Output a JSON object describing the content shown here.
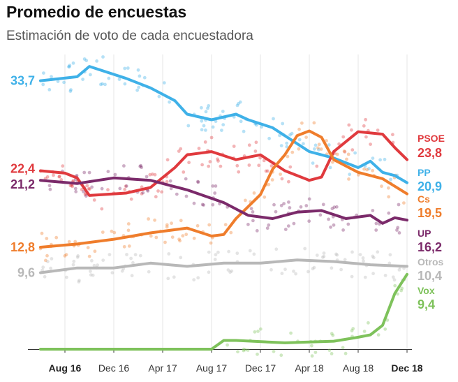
{
  "header": {
    "title": "Promedio de encuestas",
    "subtitle": "Estimación de voto de cada encuestadora"
  },
  "chart_data": {
    "type": "line",
    "title": "Promedio de encuestas",
    "subtitle": "Estimación de voto de cada encuestadora",
    "x_ticks": [
      "Aug 16",
      "Dec 16",
      "Apr 17",
      "Aug 17",
      "Dec 17",
      "Apr 18",
      "Aug 18",
      "Dec 18"
    ],
    "x_range": [
      "2016-06",
      "2018-12"
    ],
    "y_range": [
      0,
      37
    ],
    "grid": "vertical",
    "series": [
      {
        "name": "PP",
        "color": "#3fb1e8",
        "start_label": "33,7",
        "end_label": "20,9",
        "x": [
          "2016-06",
          "2016-09",
          "2016-10",
          "2017-01",
          "2017-03",
          "2017-05",
          "2017-06",
          "2017-08",
          "2017-10",
          "2017-11",
          "2018-01",
          "2018-03",
          "2018-04",
          "2018-06",
          "2018-08",
          "2018-09",
          "2018-10",
          "2018-11",
          "2018-12"
        ],
        "y": [
          33.7,
          34.2,
          35.5,
          34.0,
          32.8,
          31.2,
          29.5,
          28.8,
          29.5,
          28.8,
          27.8,
          25.8,
          24.8,
          24.0,
          22.8,
          23.6,
          22.2,
          21.8,
          20.9
        ]
      },
      {
        "name": "PSOE",
        "color": "#e03a3e",
        "start_label": "22,4",
        "end_label": "23,8",
        "x": [
          "2016-06",
          "2016-08",
          "2016-09",
          "2016-10",
          "2017-01",
          "2017-03",
          "2017-05",
          "2017-06",
          "2017-08",
          "2017-10",
          "2017-12",
          "2018-02",
          "2018-04",
          "2018-05",
          "2018-06",
          "2018-08",
          "2018-10",
          "2018-11",
          "2018-12"
        ],
        "y": [
          22.4,
          22.1,
          21.5,
          19.3,
          19.6,
          20.3,
          22.8,
          24.4,
          24.8,
          23.8,
          24.4,
          22.4,
          21.2,
          21.6,
          24.8,
          27.3,
          27.0,
          25.3,
          23.8
        ]
      },
      {
        "name": "Cs",
        "color": "#ef7d2c",
        "start_label": "12,8",
        "end_label": "19,5",
        "x": [
          "2016-06",
          "2016-09",
          "2016-12",
          "2017-03",
          "2017-06",
          "2017-08",
          "2017-09",
          "2017-10",
          "2017-12",
          "2018-01",
          "2018-02",
          "2018-03",
          "2018-04",
          "2018-05",
          "2018-06",
          "2018-08",
          "2018-10",
          "2018-12"
        ],
        "y": [
          12.8,
          13.2,
          13.8,
          14.6,
          15.2,
          14.2,
          14.4,
          16.4,
          19.4,
          22.6,
          24.4,
          26.8,
          27.4,
          26.6,
          23.8,
          22.2,
          21.4,
          19.5
        ]
      },
      {
        "name": "UP",
        "color": "#7b2a6a",
        "start_label": "21,2",
        "end_label": "16,2",
        "x": [
          "2016-06",
          "2016-09",
          "2016-12",
          "2017-03",
          "2017-06",
          "2017-09",
          "2017-11",
          "2018-01",
          "2018-03",
          "2018-05",
          "2018-07",
          "2018-09",
          "2018-10",
          "2018-11",
          "2018-12"
        ],
        "y": [
          21.2,
          20.8,
          21.5,
          21.2,
          20.0,
          18.4,
          16.8,
          16.4,
          17.2,
          17.4,
          16.4,
          16.8,
          15.8,
          16.5,
          16.2
        ]
      },
      {
        "name": "Otros",
        "color": "#b8b8b8",
        "start_label": "9,6",
        "end_label": "10,4",
        "x": [
          "2016-06",
          "2016-09",
          "2016-12",
          "2017-03",
          "2017-06",
          "2017-09",
          "2017-12",
          "2018-03",
          "2018-06",
          "2018-09",
          "2018-12"
        ],
        "y": [
          9.6,
          10.2,
          10.2,
          10.8,
          10.4,
          10.8,
          10.8,
          11.2,
          11.0,
          10.6,
          10.4
        ]
      },
      {
        "name": "Vox",
        "color": "#7ec25b",
        "start_label": "",
        "end_label": "9,4",
        "x": [
          "2016-06",
          "2017-08",
          "2017-09",
          "2017-10",
          "2018-02",
          "2018-06",
          "2018-08",
          "2018-09",
          "2018-10",
          "2018-11",
          "2018-12"
        ],
        "y": [
          0.0,
          0.0,
          1.1,
          1.1,
          0.8,
          1.0,
          1.5,
          1.8,
          3.0,
          7.0,
          9.4
        ]
      }
    ]
  }
}
